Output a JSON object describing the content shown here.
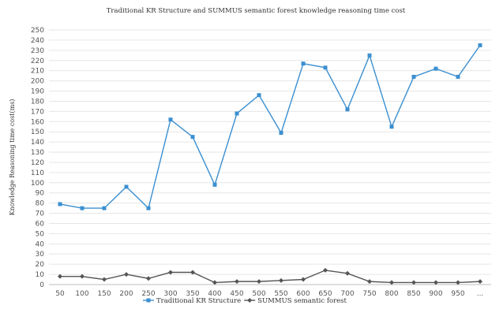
{
  "chart_data": {
    "type": "line",
    "title": "Traditional KR Structure and SUMMUS semantic forest knowledge reasoning time cost",
    "xlabel": "",
    "ylabel": "Knowledge Reasoning time cost(ms)",
    "categories": [
      "50",
      "100",
      "150",
      "200",
      "250",
      "300",
      "350",
      "400",
      "450",
      "500",
      "550",
      "600",
      "650",
      "700",
      "750",
      "800",
      "850",
      "900",
      "950",
      "..."
    ],
    "ylim": [
      0,
      250
    ],
    "yticks": [
      "0",
      "10",
      "20",
      "30",
      "40",
      "50",
      "60",
      "70",
      "80",
      "90",
      "100",
      "110",
      "120",
      "130",
      "140",
      "150",
      "160",
      "170",
      "180",
      "190",
      "200",
      "210",
      "220",
      "230",
      "240",
      "250"
    ],
    "grid": true,
    "legend_position": "bottom",
    "series": [
      {
        "name": "Traditional KR Structure",
        "color": "#3b8fd0",
        "marker": "square",
        "values": [
          79,
          75,
          75,
          96,
          75,
          162,
          145,
          98,
          168,
          186,
          149,
          217,
          213,
          172,
          225,
          155,
          204,
          212,
          204,
          235
        ]
      },
      {
        "name": "SUMMUS semantic forest",
        "color": "#555555",
        "marker": "diamond",
        "values": [
          8,
          8,
          5,
          10,
          6,
          12,
          12,
          2,
          3,
          3,
          4,
          5,
          14,
          11,
          3,
          2,
          2,
          2,
          2,
          3
        ]
      }
    ]
  }
}
